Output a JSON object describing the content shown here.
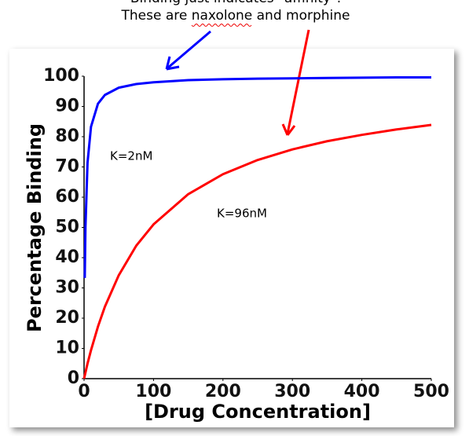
{
  "chart_data": {
    "type": "line",
    "notes": [
      "Binding just indicates \"affinity\".",
      "These are naxolone and morphine"
    ],
    "xlabel": "[Drug Concentration]",
    "ylabel": "Percentage Binding",
    "annotations": [
      "K=2nM",
      "K=96nM"
    ],
    "x": [
      0,
      1,
      2,
      5,
      10,
      20,
      30,
      50,
      75,
      100,
      150,
      200,
      250,
      300,
      350,
      400,
      450,
      500
    ],
    "series": [
      {
        "color": "#0000ff",
        "values": [
          null,
          33.3,
          50,
          71.4,
          83.3,
          90.9,
          93.8,
          96.2,
          97.4,
          98.0,
          98.7,
          99.0,
          99.2,
          99.3,
          99.4,
          99.5,
          99.6,
          99.6
        ]
      },
      {
        "color": "#ff0000",
        "values": [
          0,
          1.0,
          2.0,
          5.0,
          9.4,
          17.2,
          23.8,
          34.2,
          43.9,
          51.0,
          61.0,
          67.6,
          72.3,
          75.8,
          78.5,
          80.6,
          82.4,
          83.9
        ]
      }
    ],
    "xlim": [
      0,
      500
    ],
    "xticks": [
      0,
      100,
      200,
      300,
      400,
      500
    ],
    "ylim": [
      0,
      100
    ],
    "yticks": [
      0,
      10,
      20,
      30,
      40,
      50,
      60,
      70,
      80,
      90,
      100
    ],
    "grid": false
  }
}
